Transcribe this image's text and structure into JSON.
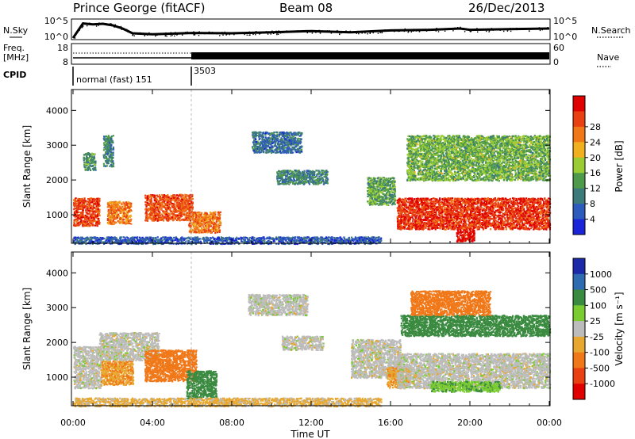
{
  "header": {
    "station": "Prince George (fitACF)",
    "beam": "Beam 08",
    "date": "26/Dec/2013"
  },
  "xaxis": {
    "label": "Time UT",
    "ticks": [
      "00:00",
      "04:00",
      "08:00",
      "12:00",
      "16:00",
      "20:00",
      "00:00"
    ]
  },
  "strips": {
    "nsky_label": "N.Sky",
    "nsky_ticks": [
      "10^5",
      "10^0"
    ],
    "nsearch_label": "N.Search",
    "nsearch_ticks": [
      "10^5",
      "10^0"
    ],
    "freq_label_1": "Freq.",
    "freq_label_2": "[MHz]",
    "freq_ticks": [
      "18",
      "8"
    ],
    "nave_label": "Nave",
    "nave_ticks": [
      "60",
      "0"
    ],
    "cpid_label": "CPID",
    "cpid_segments": [
      {
        "label": "normal (fast) 151",
        "start_hr": 0,
        "end_hr": 6.0
      },
      {
        "label": "3503",
        "start_hr": 6.0,
        "end_hr": 24
      }
    ]
  },
  "panels": {
    "power": {
      "ylabel": "Slant Range [km]",
      "yticks": [
        "1000",
        "2000",
        "3000",
        "4000"
      ],
      "colorbar_label": "Power [dB]",
      "colorbar_ticks": [
        "4",
        "8",
        "12",
        "16",
        "20",
        "24",
        "28"
      ]
    },
    "velocity": {
      "ylabel": "Slant Range [km]",
      "yticks": [
        "1000",
        "2000",
        "3000",
        "4000"
      ],
      "colorbar_label": "Velocity [m s⁻¹]",
      "colorbar_ticks": [
        "1000",
        "500",
        "100",
        "25",
        "-25",
        "-100",
        "-500",
        "-1000"
      ]
    }
  },
  "colors": {
    "power_scale": [
      "#1a24d8",
      "#2d5bbd",
      "#3d7a7a",
      "#4f9a4a",
      "#9acc33",
      "#f0b020",
      "#f07818",
      "#e84010",
      "#e00000"
    ],
    "velocity_scale": [
      "#1a2aa8",
      "#2e6bb0",
      "#3a8a40",
      "#7acc30",
      "#bcbcbc",
      "#e8a830",
      "#f07818",
      "#e84010",
      "#e00000"
    ]
  },
  "chart_data": [
    {
      "type": "line",
      "name": "N.Sky / N.Search / Freq / Nave strips",
      "x_units": "hours UT",
      "xlim": [
        0,
        24
      ],
      "series": [
        {
          "name": "N.Sky",
          "x": [
            0,
            0.5,
            1.0,
            1.5,
            2.0,
            2.5,
            3.0,
            4,
            6,
            8,
            10,
            12,
            14,
            16,
            18,
            19.5,
            20,
            22,
            24
          ],
          "y_log10": [
            0,
            4.6,
            4.3,
            4.5,
            4.0,
            3.0,
            1.5,
            1.2,
            1.6,
            1.5,
            1.8,
            2.2,
            1.8,
            2.4,
            2.6,
            3.0,
            2.6,
            2.8,
            3.0
          ]
        },
        {
          "name": "Freq",
          "x": [
            0,
            6,
            6,
            24
          ],
          "y": [
            10,
            10,
            10.5,
            10.5
          ]
        },
        {
          "name": "Nave",
          "x": [
            0,
            6,
            24
          ],
          "y": [
            28,
            28,
            28
          ]
        }
      ]
    },
    {
      "type": "heatmap",
      "name": "Power",
      "x_units": "hours UT",
      "xlim": [
        0,
        24
      ],
      "y_units": "km",
      "ylim": [
        180,
        4600
      ],
      "zlim": [
        0,
        30
      ],
      "z_units": "dB",
      "blobs": [
        {
          "t0": 0.0,
          "t1": 1.3,
          "r0": 700,
          "r1": 1500,
          "z": 25
        },
        {
          "t0": 0.5,
          "t1": 1.1,
          "r0": 2300,
          "r1": 2800,
          "z": 10
        },
        {
          "t0": 1.7,
          "t1": 2.9,
          "r0": 750,
          "r1": 1400,
          "z": 22
        },
        {
          "t0": 1.5,
          "t1": 2.0,
          "r0": 2400,
          "r1": 3300,
          "z": 9
        },
        {
          "t0": 3.6,
          "t1": 6.0,
          "r0": 850,
          "r1": 1600,
          "z": 24
        },
        {
          "t0": 5.8,
          "t1": 7.4,
          "r0": 500,
          "r1": 1100,
          "z": 22
        },
        {
          "t0": 9.0,
          "t1": 11.5,
          "r0": 2800,
          "r1": 3400,
          "z": 7
        },
        {
          "t0": 10.2,
          "t1": 12.8,
          "r0": 1900,
          "r1": 2300,
          "z": 9
        },
        {
          "t0": 14.8,
          "t1": 16.2,
          "r0": 1300,
          "r1": 2100,
          "z": 12
        },
        {
          "t0": 16.3,
          "t1": 24.0,
          "r0": 600,
          "r1": 1500,
          "z": 26
        },
        {
          "t0": 16.8,
          "t1": 24.0,
          "r0": 2000,
          "r1": 3300,
          "z": 13
        },
        {
          "t0": 19.3,
          "t1": 20.2,
          "r0": 250,
          "r1": 600,
          "z": 29
        },
        {
          "t0": 0.0,
          "t1": 15.5,
          "r0": 180,
          "r1": 380,
          "z": 5
        }
      ]
    },
    {
      "type": "heatmap",
      "name": "Velocity",
      "x_units": "hours UT",
      "xlim": [
        0,
        24
      ],
      "y_units": "km",
      "ylim": [
        180,
        4600
      ],
      "z_units": "m/s",
      "blobs": [
        {
          "t0": 0.0,
          "t1": 1.4,
          "r0": 700,
          "r1": 1900,
          "v": 0
        },
        {
          "t0": 1.4,
          "t1": 3.0,
          "r0": 800,
          "r1": 1500,
          "v": -90
        },
        {
          "t0": 1.3,
          "t1": 4.3,
          "r0": 1500,
          "r1": 2300,
          "v": 0
        },
        {
          "t0": 3.6,
          "t1": 6.2,
          "r0": 900,
          "r1": 1800,
          "v": -300
        },
        {
          "t0": 5.7,
          "t1": 7.2,
          "r0": 400,
          "r1": 1200,
          "v": 200
        },
        {
          "t0": 8.8,
          "t1": 11.8,
          "r0": 2800,
          "r1": 3400,
          "v": 0
        },
        {
          "t0": 10.5,
          "t1": 12.6,
          "r0": 1800,
          "r1": 2200,
          "v": 0
        },
        {
          "t0": 14.0,
          "t1": 16.5,
          "r0": 1000,
          "r1": 2100,
          "v": 0
        },
        {
          "t0": 15.8,
          "t1": 17.0,
          "r0": 700,
          "r1": 1300,
          "v": -90
        },
        {
          "t0": 16.3,
          "t1": 24.0,
          "r0": 700,
          "r1": 1700,
          "v": 0
        },
        {
          "t0": 16.5,
          "t1": 24.0,
          "r0": 2200,
          "r1": 2800,
          "v": 150
        },
        {
          "t0": 17.0,
          "t1": 21.0,
          "r0": 2800,
          "r1": 3500,
          "v": -400
        },
        {
          "t0": 0.0,
          "t1": 15.5,
          "r0": 180,
          "r1": 420,
          "v": -40
        },
        {
          "t0": 18.0,
          "t1": 21.5,
          "r0": 600,
          "r1": 900,
          "v": 90
        }
      ]
    }
  ]
}
